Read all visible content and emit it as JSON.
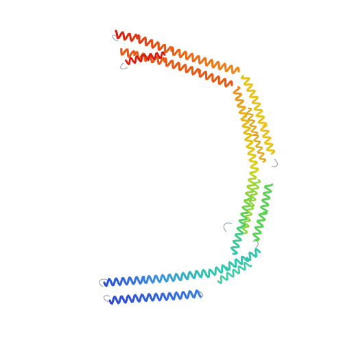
{
  "image": {
    "subject": "protein-structure-cartoon",
    "background": "#ffffff",
    "coloring": "rainbow N-to-C",
    "palette": {
      "blue": "#2a4fd6",
      "cyan": "#2fc6b0",
      "green": "#59d152",
      "yellow": "#d8d21a",
      "orange": "#f08a1a",
      "red": "#d81e10",
      "loop": "#9aa4b0"
    }
  }
}
